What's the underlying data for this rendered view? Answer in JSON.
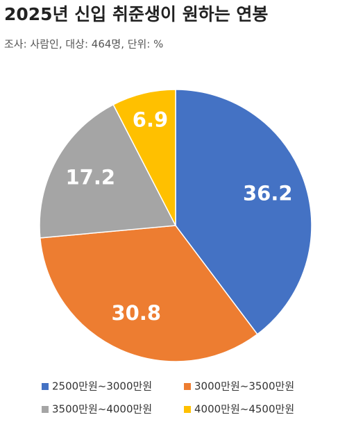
{
  "chart_data": {
    "type": "pie",
    "title": "2025년 신입 취준생이 원하는 연봉",
    "subtitle": "조사: 사람인, 대상: 464명, 단위: %",
    "categories": [
      "2500만원~3000만원",
      "3000만원~3500만원",
      "3500만원~4000만원",
      "4000만원~4500만원"
    ],
    "values": [
      36.2,
      30.8,
      17.2,
      6.9
    ],
    "colors": [
      "#4472c4",
      "#ed7d31",
      "#a5a5a5",
      "#ffc000"
    ],
    "legend": "bottom"
  }
}
